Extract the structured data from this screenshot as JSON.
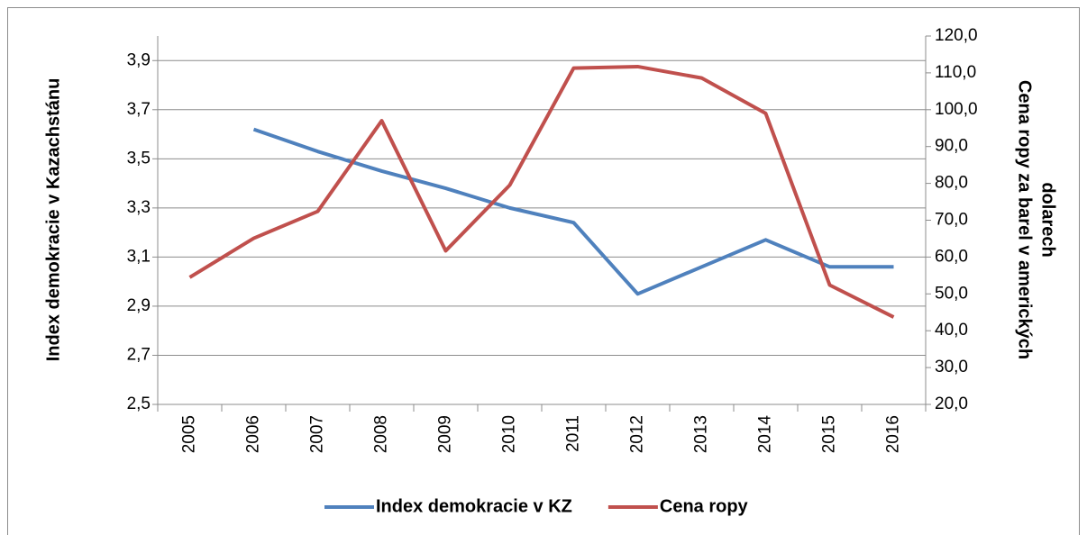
{
  "chart_data": {
    "type": "line",
    "categories": [
      "2005",
      "2006",
      "2007",
      "2008",
      "2009",
      "2010",
      "2011",
      "2012",
      "2013",
      "2014",
      "2015",
      "2016"
    ],
    "series": [
      {
        "name": "Index demokracie v KZ",
        "color": "#4f81bd",
        "axis": "y",
        "values": [
          null,
          3.62,
          3.53,
          3.45,
          3.38,
          3.3,
          3.24,
          2.95,
          3.06,
          3.17,
          3.06,
          3.06
        ]
      },
      {
        "name": "Cena ropy",
        "color": "#c0504d",
        "axis": "y2",
        "values": [
          54.5,
          65.1,
          72.4,
          97.0,
          61.7,
          79.5,
          111.3,
          111.7,
          108.6,
          99.0,
          52.4,
          43.7
        ]
      }
    ],
    "ylabel": "Index demokracie v Kazachstánu",
    "y2label": [
      "Cena ropy za barel v amerických",
      "dolarech"
    ],
    "ylim": [
      2.5,
      4.0
    ],
    "yticks": [
      {
        "value": 2.5,
        "label": "2,5"
      },
      {
        "value": 2.7,
        "label": "2,7"
      },
      {
        "value": 2.9,
        "label": "2,9"
      },
      {
        "value": 3.1,
        "label": "3,1"
      },
      {
        "value": 3.3,
        "label": "3,3"
      },
      {
        "value": 3.5,
        "label": "3,5"
      },
      {
        "value": 3.7,
        "label": "3,7"
      },
      {
        "value": 3.9,
        "label": "3,9"
      }
    ],
    "y2lim": [
      20,
      120
    ],
    "y2ticks": [
      {
        "value": 20,
        "label": "20,0"
      },
      {
        "value": 30,
        "label": "30,0"
      },
      {
        "value": 40,
        "label": "40,0"
      },
      {
        "value": 50,
        "label": "50,0"
      },
      {
        "value": 60,
        "label": "60,0"
      },
      {
        "value": 70,
        "label": "70,0"
      },
      {
        "value": 80,
        "label": "80,0"
      },
      {
        "value": 90,
        "label": "90,0"
      },
      {
        "value": 100,
        "label": "100,0"
      },
      {
        "value": 110,
        "label": "110,0"
      },
      {
        "value": 120,
        "label": "120,0"
      }
    ],
    "grid": true,
    "legend": "bottom"
  }
}
